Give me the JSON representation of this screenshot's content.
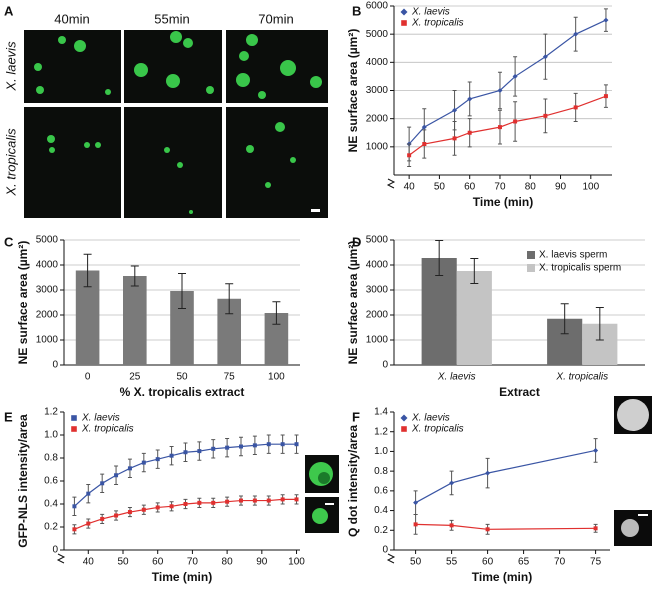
{
  "micrograph": {
    "panel": "A",
    "columns": [
      "40min",
      "55min",
      "70min"
    ],
    "rows": [
      "X. laevis",
      "X. tropicalis"
    ]
  },
  "chart_data": [
    {
      "type": "line",
      "panel": "B",
      "ylabel": "NE surface area (µm²)",
      "xlabel": "Time (min)",
      "xlim": [
        35,
        107
      ],
      "xticks": [
        40,
        50,
        60,
        70,
        80,
        90,
        100
      ],
      "ylim": [
        0,
        6000
      ],
      "yticks": [
        1000,
        2000,
        3000,
        4000,
        5000,
        6000
      ],
      "grid": true,
      "legend": "upper left",
      "x": [
        40,
        45,
        55,
        60,
        70,
        75,
        85,
        95,
        105
      ],
      "series": [
        {
          "name": "X. laevis",
          "color": "#3a55a4",
          "marker": "diamond",
          "values": [
            1100,
            1700,
            2300,
            2700,
            3000,
            3500,
            4200,
            5000,
            5500
          ],
          "errors": [
            600,
            650,
            700,
            600,
            650,
            700,
            800,
            600,
            400
          ]
        },
        {
          "name": "X. tropicalis",
          "color": "#e0302f",
          "marker": "square",
          "values": [
            700,
            1100,
            1300,
            1500,
            1700,
            1900,
            2100,
            2400,
            2800
          ],
          "errors": [
            400,
            500,
            600,
            500,
            600,
            700,
            600,
            500,
            400
          ]
        }
      ]
    },
    {
      "type": "bar",
      "panel": "C",
      "ylabel": "NE surface area (µm²)",
      "xlabel": "% X. tropicalis extract",
      "categories": [
        "0",
        "25",
        "50",
        "75",
        "100"
      ],
      "values": [
        3780,
        3560,
        2960,
        2650,
        2080
      ],
      "errors": [
        650,
        400,
        700,
        600,
        450
      ],
      "color": "#7a7a7a",
      "ylim": [
        0,
        5000
      ],
      "yticks": [
        0,
        1000,
        2000,
        3000,
        4000,
        5000
      ],
      "grid": true
    },
    {
      "type": "grouped_bar",
      "panel": "D",
      "ylabel": "NE surface area (µm²)",
      "xlabel": "Extract",
      "categories": [
        "X. laevis",
        "X. tropicalis"
      ],
      "ylim": [
        0,
        5000
      ],
      "yticks": [
        0,
        1000,
        2000,
        3000,
        4000,
        5000
      ],
      "grid": true,
      "legend": "upper right",
      "series": [
        {
          "name": "X. laevis sperm",
          "color": "#6d6d6d",
          "values": [
            4280,
            1850
          ],
          "errors": [
            700,
            600
          ]
        },
        {
          "name": "X. tropicalis sperm",
          "color": "#c4c4c4",
          "values": [
            3760,
            1650
          ],
          "errors": [
            500,
            650
          ]
        }
      ]
    },
    {
      "type": "line",
      "panel": "E",
      "ylabel": "GFP-NLS intensity/area",
      "xlabel": "Time (min)",
      "xlim": [
        33,
        101
      ],
      "xticks": [
        40,
        50,
        60,
        70,
        80,
        90,
        100
      ],
      "ylim": [
        0,
        1.2
      ],
      "yticks": [
        0,
        0.2,
        0.4,
        0.6,
        0.8,
        {
          "value": 1,
          "label": "1.0"
        },
        1.2
      ],
      "grid": false,
      "legend": "upper left",
      "x": [
        36,
        40,
        44,
        48,
        52,
        56,
        60,
        64,
        68,
        72,
        76,
        80,
        84,
        88,
        92,
        96,
        100
      ],
      "series": [
        {
          "name": "X. laevis",
          "color": "#3a55a4",
          "marker": "square",
          "values": [
            0.38,
            0.49,
            0.58,
            0.65,
            0.71,
            0.76,
            0.79,
            0.82,
            0.85,
            0.86,
            0.88,
            0.89,
            0.9,
            0.91,
            0.92,
            0.92,
            0.92
          ],
          "errors": [
            0.08,
            0.08,
            0.08,
            0.08,
            0.08,
            0.08,
            0.08,
            0.08,
            0.08,
            0.08,
            0.08,
            0.08,
            0.08,
            0.08,
            0.08,
            0.08,
            0.08
          ]
        },
        {
          "name": "X. tropicalis",
          "color": "#e0302f",
          "marker": "square",
          "values": [
            0.18,
            0.23,
            0.27,
            0.3,
            0.33,
            0.35,
            0.37,
            0.38,
            0.4,
            0.41,
            0.41,
            0.42,
            0.43,
            0.43,
            0.43,
            0.44,
            0.44
          ],
          "errors": [
            0.04,
            0.04,
            0.04,
            0.04,
            0.04,
            0.04,
            0.04,
            0.04,
            0.04,
            0.04,
            0.04,
            0.04,
            0.04,
            0.04,
            0.04,
            0.04,
            0.04
          ]
        }
      ]
    },
    {
      "type": "line",
      "panel": "F",
      "ylabel": "Q dot intensity/area",
      "xlabel": "Time (min)",
      "xlim": [
        47,
        77
      ],
      "xticks": [
        50,
        55,
        60,
        65,
        70,
        75
      ],
      "ylim": [
        0,
        1.4
      ],
      "yticks": [
        0,
        0.2,
        0.4,
        0.6,
        0.8,
        {
          "value": 1,
          "label": "1.0"
        },
        1.2,
        1.4
      ],
      "grid": false,
      "legend": "upper left",
      "x": [
        50,
        55,
        60,
        75
      ],
      "series": [
        {
          "name": "X. laevis",
          "color": "#3a55a4",
          "marker": "diamond",
          "values": [
            0.48,
            0.68,
            0.78,
            1.01
          ],
          "errors": [
            0.12,
            0.12,
            0.15,
            0.12
          ]
        },
        {
          "name": "X. tropicalis",
          "color": "#e0302f",
          "marker": "square",
          "values": [
            0.26,
            0.25,
            0.21,
            0.22
          ],
          "errors": [
            0.1,
            0.05,
            0.05,
            0.04
          ]
        }
      ]
    }
  ]
}
